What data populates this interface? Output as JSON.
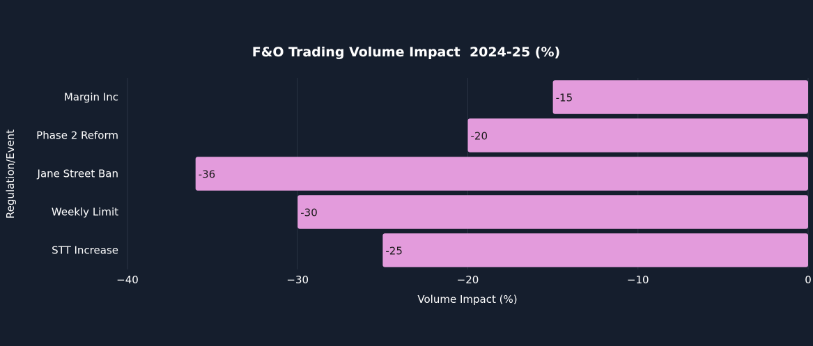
{
  "chart_data": {
    "type": "bar",
    "orientation": "horizontal",
    "title": "F&O Trading Volume Impact  2024-25 (%)",
    "xlabel": "Volume Impact (%)",
    "ylabel": "Regulation/Event",
    "categories": [
      "Margin Inc",
      "Phase 2 Reform",
      "Jane Street Ban",
      "Weekly Limit",
      "STT Increase"
    ],
    "values": [
      -15,
      -20,
      -36,
      -30,
      -25
    ],
    "data_labels": [
      "-15",
      "-20",
      "-36",
      "-30",
      "-25"
    ],
    "xlim": [
      -40,
      0
    ],
    "xticks": [
      -40,
      -30,
      -20,
      -10,
      0
    ],
    "xtick_labels": [
      "−40",
      "−30",
      "−20",
      "−10",
      "0"
    ],
    "grid": true,
    "bar_color": "#e39bdc",
    "background": "#151e2d"
  }
}
